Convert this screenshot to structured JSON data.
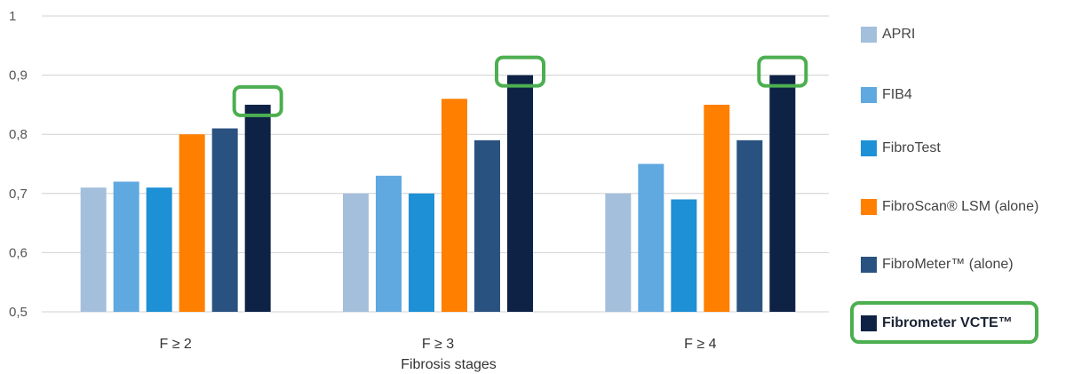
{
  "chart_data": {
    "type": "bar",
    "title": "",
    "xlabel": "Fibrosis stages",
    "ylabel": "",
    "ylim": [
      0.5,
      1.0
    ],
    "yticks": [
      "0,5",
      "0,6",
      "0,7",
      "0,8",
      "0,9",
      "1"
    ],
    "grid": true,
    "legend_position": "right",
    "categories": [
      "F ≥ 2",
      "F ≥ 3",
      "F ≥ 4"
    ],
    "series": [
      {
        "name": "APRI",
        "color": "#a4bfdb",
        "values": [
          0.71,
          0.7,
          0.7
        ]
      },
      {
        "name": "FIB4",
        "color": "#5fa8e0",
        "values": [
          0.72,
          0.73,
          0.75
        ]
      },
      {
        "name": "FibroTest",
        "color": "#1e90d6",
        "values": [
          0.71,
          0.7,
          0.69
        ]
      },
      {
        "name": "FibroScan® LSM (alone)",
        "color": "#ff7f00",
        "values": [
          0.8,
          0.86,
          0.85
        ]
      },
      {
        "name": "FibroMeter™ (alone)",
        "color": "#2a5280",
        "values": [
          0.81,
          0.79,
          0.79
        ]
      },
      {
        "name": "Fibrometer VCTE™",
        "color": "#0d2245",
        "values": [
          0.85,
          0.9,
          0.9
        ],
        "highlighted": true
      }
    ],
    "highlight_color": "#4caf50"
  }
}
